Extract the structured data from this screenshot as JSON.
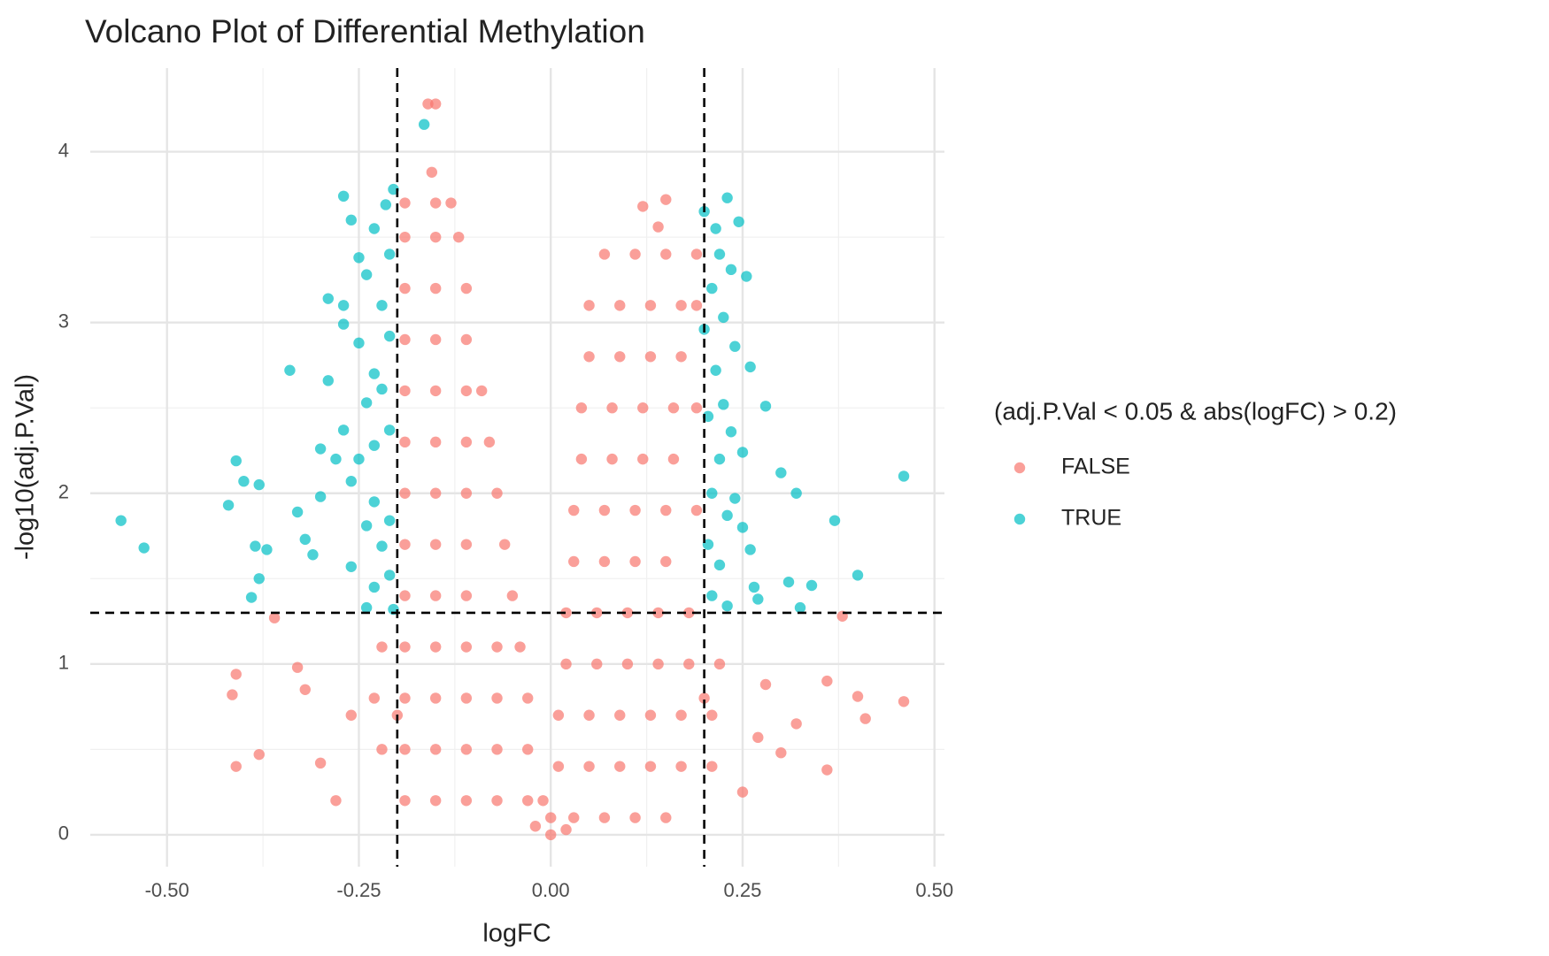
{
  "chart_data": {
    "type": "scatter",
    "title": "Volcano Plot of Differential Methylation",
    "x_label": "logFC",
    "y_label": "-log10(adj.P.Val)",
    "legend_title": "(adj.P.Val < 0.05 & abs(logFC) > 0.2)",
    "legend_position": "right",
    "grid": true,
    "xlim": [
      -0.6,
      0.513
    ],
    "ylim": [
      -0.187,
      4.49
    ],
    "xticks": [
      {
        "value": -0.5,
        "label": "-0.50"
      },
      {
        "value": -0.25,
        "label": "-0.25"
      },
      {
        "value": 0,
        "label": "0.00"
      },
      {
        "value": 0.25,
        "label": "0.25"
      },
      {
        "value": 0.5,
        "label": "0.50"
      }
    ],
    "yticks": [
      0,
      1,
      2,
      3,
      4
    ],
    "vlines": [
      -0.2,
      0.2
    ],
    "hline": 1.3,
    "series": [
      {
        "name": "FALSE",
        "color": "#F8766D",
        "x": [
          -0.19,
          -0.15,
          -0.13,
          -0.19,
          -0.15,
          -0.12,
          -0.19,
          -0.15,
          -0.11,
          -0.19,
          -0.15,
          -0.11,
          -0.19,
          -0.15,
          -0.11,
          -0.09,
          -0.19,
          -0.15,
          -0.11,
          -0.08,
          -0.19,
          -0.15,
          -0.11,
          -0.07,
          -0.19,
          -0.15,
          -0.11,
          -0.06,
          -0.19,
          -0.15,
          -0.11,
          -0.05,
          -0.22,
          -0.19,
          -0.15,
          -0.11,
          -0.07,
          -0.04,
          -0.23,
          -0.19,
          -0.15,
          -0.11,
          -0.07,
          -0.03,
          -0.22,
          -0.19,
          -0.15,
          -0.11,
          -0.07,
          -0.03,
          -0.19,
          -0.15,
          -0.11,
          -0.07,
          -0.03,
          -0.01,
          0.07,
          0.11,
          0.15,
          0.19,
          0.05,
          0.09,
          0.13,
          0.17,
          0.19,
          0.05,
          0.09,
          0.13,
          0.17,
          0.04,
          0.08,
          0.12,
          0.16,
          0.19,
          0.04,
          0.08,
          0.12,
          0.16,
          0.03,
          0.07,
          0.11,
          0.15,
          0.19,
          0.03,
          0.07,
          0.11,
          0.15,
          0.02,
          0.06,
          0.1,
          0.14,
          0.18,
          0.02,
          0.06,
          0.1,
          0.14,
          0.18,
          0.22,
          0.01,
          0.05,
          0.09,
          0.13,
          0.17,
          0.21,
          0.01,
          0.05,
          0.09,
          0.13,
          0.17,
          0.21,
          0,
          0.03,
          0.07,
          0.11,
          0.15,
          -0.16,
          -0.15,
          -0.155,
          -0.41,
          -0.415,
          -0.41,
          -0.38,
          -0.36,
          -0.3,
          -0.28,
          -0.26,
          -0.32,
          0.38,
          0.46,
          0.4,
          0.41,
          0.36,
          0.36,
          0.32,
          0.28,
          0.3,
          0.25,
          0.27,
          0.12,
          0.15,
          0.14,
          0,
          -0.02,
          0.02,
          -0.2,
          0.2,
          -0.33
        ],
        "values": [
          3.7,
          3.7,
          3.7,
          3.5,
          3.5,
          3.5,
          3.2,
          3.2,
          3.2,
          2.9,
          2.9,
          2.9,
          2.6,
          2.6,
          2.6,
          2.6,
          2.3,
          2.3,
          2.3,
          2.3,
          2.0,
          2.0,
          2.0,
          2.0,
          1.7,
          1.7,
          1.7,
          1.7,
          1.4,
          1.4,
          1.4,
          1.4,
          1.1,
          1.1,
          1.1,
          1.1,
          1.1,
          1.1,
          0.8,
          0.8,
          0.8,
          0.8,
          0.8,
          0.8,
          0.5,
          0.5,
          0.5,
          0.5,
          0.5,
          0.5,
          0.2,
          0.2,
          0.2,
          0.2,
          0.2,
          0.2,
          3.4,
          3.4,
          3.4,
          3.4,
          3.1,
          3.1,
          3.1,
          3.1,
          3.1,
          2.8,
          2.8,
          2.8,
          2.8,
          2.5,
          2.5,
          2.5,
          2.5,
          2.5,
          2.2,
          2.2,
          2.2,
          2.2,
          1.9,
          1.9,
          1.9,
          1.9,
          1.9,
          1.6,
          1.6,
          1.6,
          1.6,
          1.3,
          1.3,
          1.3,
          1.3,
          1.3,
          1.0,
          1.0,
          1.0,
          1.0,
          1.0,
          1.0,
          0.7,
          0.7,
          0.7,
          0.7,
          0.7,
          0.7,
          0.4,
          0.4,
          0.4,
          0.4,
          0.4,
          0.4,
          0.1,
          0.1,
          0.1,
          0.1,
          0.1,
          4.28,
          4.28,
          3.88,
          0.94,
          0.82,
          0.4,
          0.47,
          1.27,
          0.42,
          0.2,
          0.7,
          0.85,
          1.28,
          0.78,
          0.81,
          0.68,
          0.9,
          0.38,
          0.65,
          0.88,
          0.48,
          0.25,
          0.57,
          3.68,
          3.72,
          3.56,
          0,
          0.05,
          0.03,
          0.7,
          0.8,
          0.98
        ]
      },
      {
        "name": "TRUE",
        "color": "#00BFC4",
        "x": [
          -0.56,
          -0.53,
          -0.42,
          -0.41,
          -0.4,
          -0.38,
          -0.385,
          -0.38,
          -0.39,
          -0.37,
          -0.34,
          -0.33,
          -0.32,
          -0.31,
          -0.3,
          -0.29,
          -0.29,
          -0.3,
          -0.28,
          -0.27,
          -0.27,
          -0.27,
          -0.27,
          -0.26,
          -0.26,
          -0.26,
          -0.25,
          -0.25,
          -0.25,
          -0.24,
          -0.24,
          -0.24,
          -0.24,
          -0.23,
          -0.23,
          -0.23,
          -0.23,
          -0.23,
          -0.22,
          -0.22,
          -0.22,
          -0.215,
          -0.21,
          -0.21,
          -0.21,
          -0.21,
          -0.21,
          -0.205,
          -0.205,
          -0.165,
          0.2,
          0.2,
          0.205,
          0.205,
          0.21,
          0.21,
          0.21,
          0.215,
          0.215,
          0.22,
          0.22,
          0.22,
          0.225,
          0.225,
          0.23,
          0.23,
          0.23,
          0.235,
          0.235,
          0.24,
          0.24,
          0.245,
          0.25,
          0.25,
          0.255,
          0.26,
          0.26,
          0.265,
          0.27,
          0.28,
          0.3,
          0.31,
          0.32,
          0.325,
          0.34,
          0.37,
          0.4,
          0.46
        ],
        "values": [
          1.84,
          1.68,
          1.93,
          2.19,
          2.07,
          2.05,
          1.69,
          1.5,
          1.39,
          1.67,
          2.72,
          1.89,
          1.73,
          1.64,
          2.26,
          3.14,
          2.66,
          1.98,
          2.2,
          2.37,
          3.74,
          3.1,
          2.99,
          3.6,
          2.07,
          1.57,
          3.38,
          2.88,
          2.2,
          3.28,
          2.53,
          1.81,
          1.33,
          3.55,
          2.7,
          2.28,
          1.95,
          1.45,
          3.1,
          2.61,
          1.69,
          3.69,
          3.4,
          2.92,
          2.37,
          1.84,
          1.52,
          3.78,
          1.32,
          4.16,
          3.65,
          2.96,
          2.45,
          1.7,
          3.2,
          2.0,
          1.4,
          3.55,
          2.72,
          3.4,
          2.2,
          1.58,
          3.03,
          2.52,
          3.73,
          1.87,
          1.34,
          3.31,
          2.36,
          2.86,
          1.97,
          3.59,
          2.24,
          1.8,
          3.27,
          2.74,
          1.67,
          1.45,
          1.38,
          2.51,
          2.12,
          1.48,
          2.0,
          1.33,
          1.46,
          1.84,
          1.52,
          2.1
        ]
      }
    ]
  }
}
